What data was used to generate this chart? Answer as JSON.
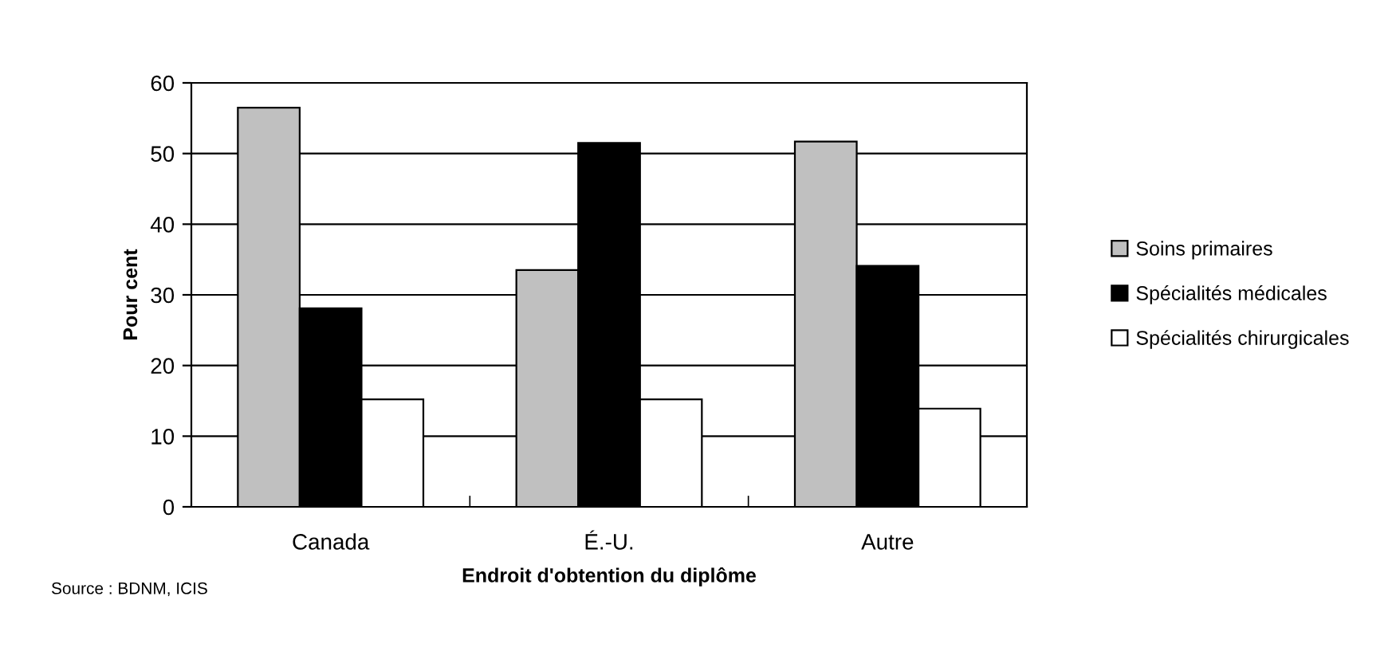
{
  "chart_data": {
    "type": "bar",
    "xlabel": "Endroit d'obtention du diplôme",
    "ylabel": "Pour cent",
    "categories": [
      "Canada",
      "É.-U.",
      "Autre"
    ],
    "series": [
      {
        "name": "Soins primaires",
        "color": "#c0c0c0",
        "values": [
          56.5,
          33.5,
          51.7
        ]
      },
      {
        "name": "Spécialités médicales",
        "color": "#000000",
        "values": [
          28.1,
          51.5,
          34.1
        ]
      },
      {
        "name": "Spécialités chirurgicales",
        "color": "#ffffff",
        "values": [
          15.2,
          15.2,
          13.9
        ]
      }
    ],
    "ylim": [
      0,
      60
    ],
    "yticks": [
      0,
      10,
      20,
      30,
      40,
      50,
      60
    ],
    "grid": "y",
    "legend": "right",
    "annotations": [
      "Source : BDNM, ICIS"
    ]
  }
}
